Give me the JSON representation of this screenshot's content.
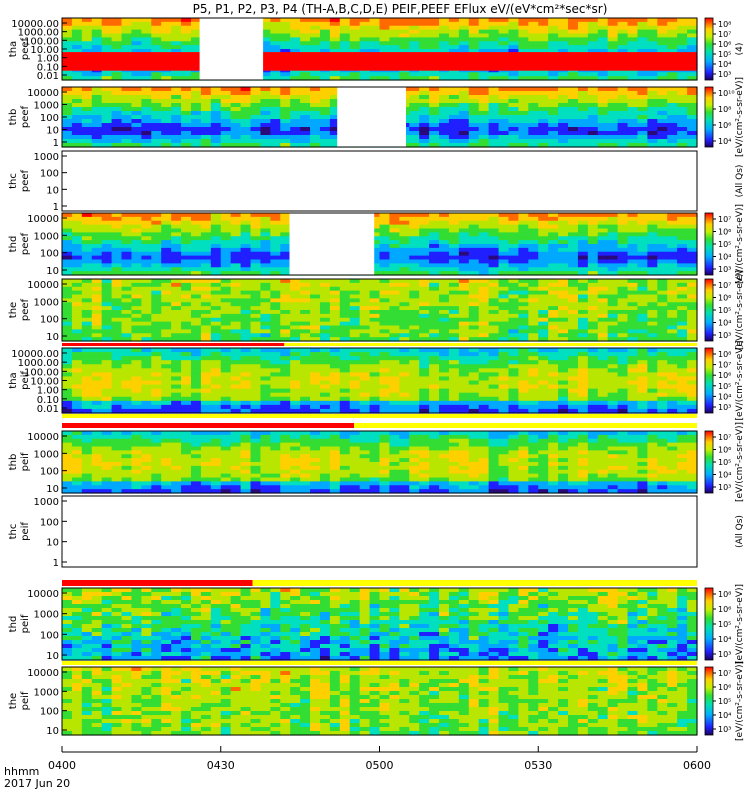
{
  "title": "P5, P1, P2, P3, P4 (TH-A,B,C,D,E) PEIF,PEEF EFlux eV/(eV*cm²*sec*sr)",
  "chart_data": {
    "type": "heatmap",
    "title": "P5, P1, P2, P3, P4 (TH-A,B,C,D,E) PEIF,PEEF EFlux eV/(eV*cm²*sec*sr)",
    "xlabel_left": [
      "hhmm",
      "2017 Jun 20"
    ],
    "x_range": [
      "0400",
      "0600"
    ],
    "x_ticks": [
      "0400",
      "0430",
      "0500",
      "0530",
      "0600"
    ],
    "y_scale": "log",
    "colorbar_scale": "log",
    "panels": [
      {
        "label_line1": "tha",
        "label_line2": "peef",
        "yticks": [
          "10000.00",
          "1000.00",
          "100.00",
          "10.00",
          "1.00",
          "0.10",
          "0.01"
        ],
        "colorbar_ticks": [
          "10⁸",
          "10⁷",
          "10⁶",
          "10⁵",
          "10⁴",
          "10³"
        ],
        "colorbar_label": "(4)",
        "gaps": [
          [
            "0426",
            "0438"
          ]
        ],
        "low_energy_band": "red"
      },
      {
        "label_line1": "thb",
        "label_line2": "peef",
        "yticks": [
          "10000",
          "1000",
          "100",
          "10",
          "1"
        ],
        "colorbar_ticks": [
          "10¹⁰",
          "10⁸",
          "10⁶",
          "10⁴"
        ],
        "colorbar_label": "[eV/(cm²-s-sr-eV)]",
        "gaps": [
          [
            "0452",
            "0505"
          ]
        ]
      },
      {
        "label_line1": "thc",
        "label_line2": "peef",
        "yticks": [
          "1000",
          "100",
          "10",
          "1"
        ],
        "colorbar_ticks": [],
        "colorbar_label": "(All Qs)",
        "no_data": true
      },
      {
        "label_line1": "thd",
        "label_line2": "peef",
        "yticks": [
          "10000",
          "1000",
          "100",
          "10"
        ],
        "colorbar_ticks": [
          "10⁷",
          "10⁶",
          "10⁵",
          "10⁴",
          "10³"
        ],
        "colorbar_label": "[eV/(cm²-s-sr-eV)]",
        "gaps": [
          [
            "0443",
            "0459"
          ]
        ]
      },
      {
        "label_line1": "the",
        "label_line2": "peef",
        "yticks": [
          "10000",
          "1000",
          "100",
          "10"
        ],
        "colorbar_ticks": [
          "10⁷",
          "10⁶",
          "10⁵",
          "10⁴",
          "10³"
        ],
        "colorbar_label": "[eV/(cm²-s-sr-eV)]",
        "gaps": []
      },
      {
        "label_line1": "tha",
        "label_line2": "peif",
        "yticks": [
          "10000.00",
          "1000.00",
          "100.00",
          "10.00",
          "1.00",
          "0.10",
          "0.01"
        ],
        "colorbar_ticks": [
          "10⁸",
          "10⁷",
          "10⁶",
          "10⁵",
          "10⁴",
          "10³"
        ],
        "colorbar_label": "[eV/(cm²-s-sr-eV)]",
        "gaps": []
      },
      {
        "label_line1": "thb",
        "label_line2": "peif",
        "yticks": [
          "10000",
          "1000",
          "100",
          "10"
        ],
        "colorbar_ticks": [
          "10⁷",
          "10⁶",
          "10⁵",
          "10⁴",
          "10³"
        ],
        "colorbar_label": "[eV/(cm²-s-sr-eV)]",
        "gaps": []
      },
      {
        "label_line1": "thc",
        "label_line2": "peif",
        "yticks": [
          "1000",
          "100",
          "10",
          "1"
        ],
        "colorbar_ticks": [],
        "colorbar_label": "(All Qs)",
        "no_data": true
      },
      {
        "label_line1": "thd",
        "label_line2": "peif",
        "yticks": [
          "10000",
          "1000",
          "100",
          "10"
        ],
        "colorbar_ticks": [
          "10⁸",
          "10⁶",
          "10⁵",
          "10⁴",
          "10³"
        ],
        "colorbar_label": "[eV/(cm²-s-sr-eV)]",
        "gaps": []
      },
      {
        "label_line1": "the",
        "label_line2": "peif",
        "yticks": [
          "10000",
          "1000",
          "100",
          "10"
        ],
        "colorbar_ticks": [
          "10⁷",
          "10⁶",
          "10⁵",
          "10⁴",
          "10³"
        ],
        "colorbar_label": "[eV/(cm²-s-sr-eV)]",
        "gaps": []
      }
    ]
  },
  "colors": {
    "quality_red": "#ff0000",
    "quality_yellow": "#ffff00",
    "colormap": [
      "#2a0a7a",
      "#1f1fff",
      "#00a8ff",
      "#00e0c0",
      "#33dd33",
      "#b8e600",
      "#ffd000",
      "#ff6a00",
      "#ff0000"
    ]
  }
}
